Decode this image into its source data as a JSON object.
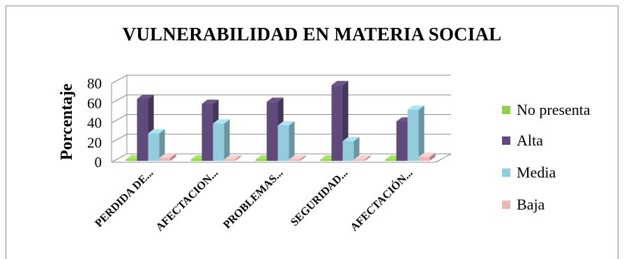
{
  "chart_data": {
    "type": "bar",
    "title": "VULNERABILIDAD EN MATERIA SOCIAL",
    "ylabel": "Porcentaje",
    "xlabel": "",
    "categories": [
      "PERDIDA DE...",
      "AFECTACION...",
      "PROBLEMAS...",
      "SEGURIDAD...",
      "AFECTACIÓN..."
    ],
    "ylim": [
      0,
      80
    ],
    "yticks": [
      0,
      20,
      40,
      60,
      80
    ],
    "series": [
      {
        "name": "No presenta",
        "color": "#92d050",
        "values": [
          0,
          0,
          0,
          0,
          0
        ]
      },
      {
        "name": "Alta",
        "color": "#604a7b",
        "values": [
          63,
          58,
          60,
          77,
          40
        ]
      },
      {
        "name": "Media",
        "color": "#93cddd",
        "values": [
          28,
          38,
          36,
          20,
          52
        ]
      },
      {
        "name": "Baja",
        "color": "#e6b9b8",
        "values": [
          3,
          0,
          0,
          0,
          4
        ]
      }
    ],
    "legend_position": "right",
    "grid": true,
    "style": "3d-clustered-column"
  }
}
